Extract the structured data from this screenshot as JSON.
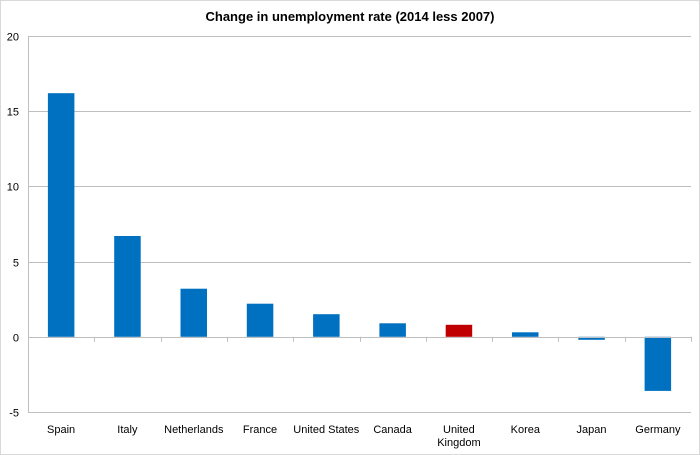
{
  "chart_data": {
    "type": "bar",
    "title": "Change in unemployment rate (2014 less 2007)",
    "xlabel": "",
    "ylabel": "",
    "ylim": [
      -5,
      20
    ],
    "yticks": [
      20,
      15,
      10,
      5,
      0,
      -5
    ],
    "grid": true,
    "categories": [
      [
        "Spain"
      ],
      [
        "Italy"
      ],
      [
        "Netherlands"
      ],
      [
        "France"
      ],
      [
        "United States"
      ],
      [
        "Canada"
      ],
      [
        "United",
        "Kingdom"
      ],
      [
        "Korea"
      ],
      [
        "Japan"
      ],
      [
        "Germany"
      ]
    ],
    "values": [
      16.2,
      6.7,
      3.2,
      2.2,
      1.5,
      0.9,
      0.8,
      0.3,
      -0.2,
      -3.6
    ],
    "bar_colors": [
      "#0070c0",
      "#0070c0",
      "#0070c0",
      "#0070c0",
      "#0070c0",
      "#0070c0",
      "#c00000",
      "#0070c0",
      "#0070c0",
      "#0070c0"
    ]
  }
}
